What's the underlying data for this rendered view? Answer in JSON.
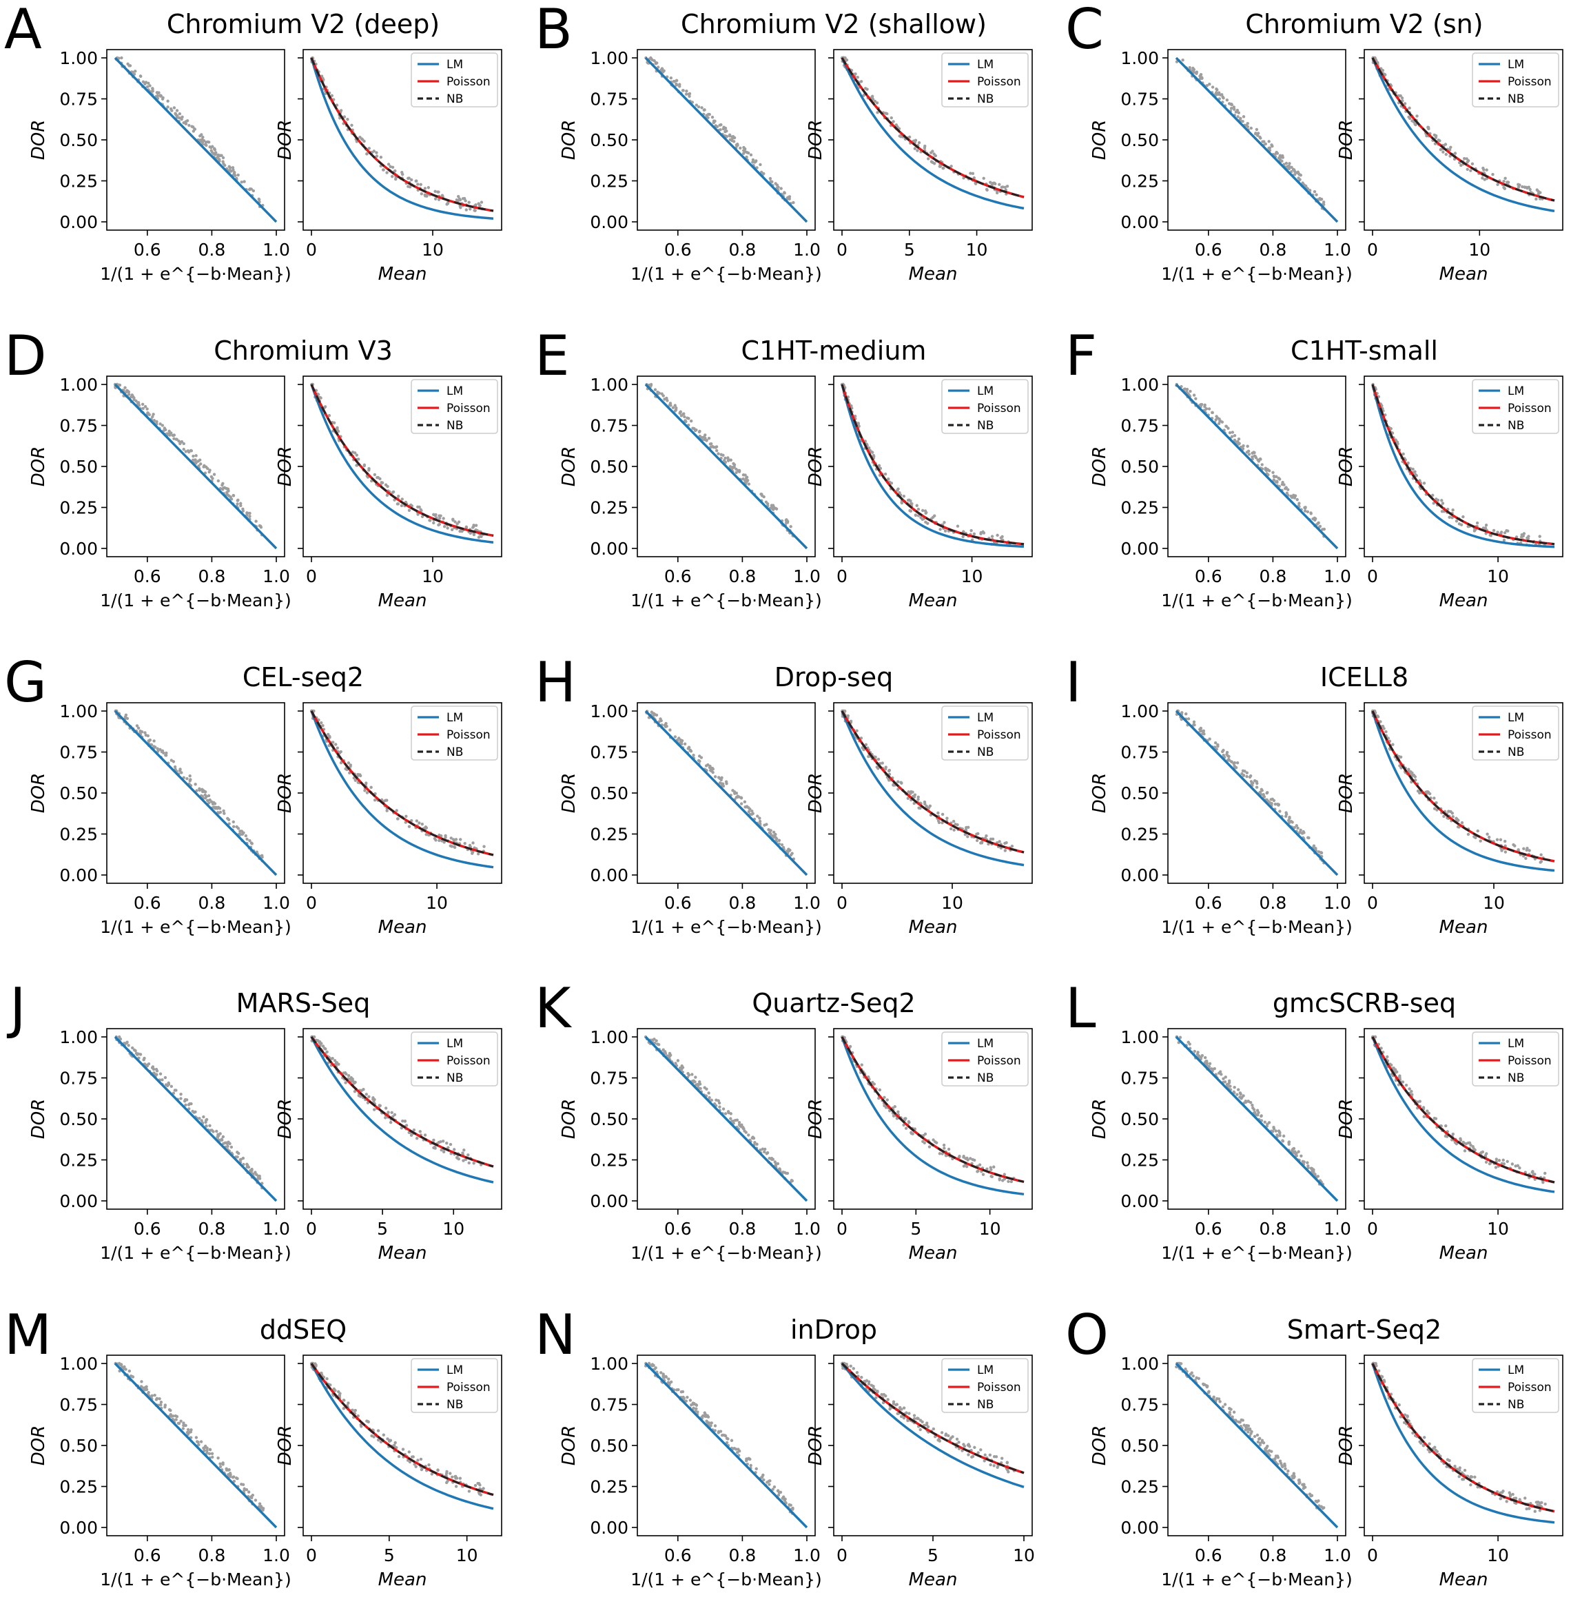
{
  "legend_labels": [
    "LM",
    "Poisson",
    "NB"
  ],
  "colors": {
    "LM": "#1f77b4",
    "Poisson": "#e31a1c",
    "NB": "#222222",
    "points": "#9e9e9e"
  },
  "chart_data": [
    {
      "letter": "A",
      "title": "Chromium V2 (deep)",
      "type": "line",
      "left": {
        "xlabel": "1/(1 + e^{−b·Mean})",
        "ylabel": "DOR",
        "xlim": [
          0.5,
          1.0
        ],
        "ylim": [
          0,
          1
        ],
        "xticks": [
          "0.6",
          "0.8",
          "1.0"
        ],
        "yticks": [
          "0.00",
          "0.25",
          "0.50",
          "0.75",
          "1.00"
        ],
        "series": [
          {
            "name": "LM",
            "values": [
              [
                0.5,
                1.0
              ],
              [
                1.0,
                0.0
              ]
            ]
          }
        ]
      },
      "right": {
        "xlabel": "Mean",
        "ylabel": "DOR",
        "xmax": 15,
        "xticks": [
          "0",
          "10"
        ],
        "k_lm": 0.26,
        "k_pois": 0.18,
        "series": [
          "LM",
          "Poisson",
          "NB"
        ],
        "legend": "top-right"
      }
    },
    {
      "letter": "B",
      "title": "Chromium V2 (shallow)",
      "type": "line",
      "left": {
        "xlabel": "1/(1 + e^{−b·Mean})",
        "ylabel": "DOR",
        "xlim": [
          0.5,
          1.0
        ],
        "ylim": [
          0,
          1
        ],
        "xticks": [
          "0.6",
          "0.8",
          "1.0"
        ],
        "yticks": [
          "0.00",
          "0.25",
          "0.50",
          "0.75",
          "1.00"
        ],
        "series": [
          {
            "name": "LM",
            "values": [
              [
                0.5,
                1.0
              ],
              [
                1.0,
                0.0
              ]
            ]
          }
        ]
      },
      "right": {
        "xlabel": "Mean",
        "ylabel": "DOR",
        "xmax": 13.5,
        "xticks": [
          "0",
          "5",
          "10"
        ],
        "k_lm": 0.185,
        "k_pois": 0.14,
        "series": [
          "LM",
          "Poisson",
          "NB"
        ],
        "legend": "top-right"
      }
    },
    {
      "letter": "C",
      "title": "Chromium V2 (sn)",
      "type": "line",
      "left": {
        "xlabel": "1/(1 + e^{−b·Mean})",
        "ylabel": "DOR",
        "xlim": [
          0.5,
          1.0
        ],
        "ylim": [
          0,
          1
        ],
        "xticks": [
          "0.6",
          "0.8",
          "1.0"
        ],
        "yticks": [
          "0.00",
          "0.25",
          "0.50",
          "0.75",
          "1.00"
        ],
        "series": [
          {
            "name": "LM",
            "values": [
              [
                0.5,
                1.0
              ],
              [
                1.0,
                0.0
              ]
            ]
          }
        ]
      },
      "right": {
        "xlabel": "Mean",
        "ylabel": "DOR",
        "xmax": 17,
        "xticks": [
          "0",
          "10"
        ],
        "k_lm": 0.16,
        "k_pois": 0.12,
        "series": [
          "LM",
          "Poisson",
          "NB"
        ],
        "legend": "top-right"
      }
    },
    {
      "letter": "D",
      "title": "Chromium V3",
      "type": "line",
      "left": {
        "xlabel": "1/(1 + e^{−b·Mean})",
        "ylabel": "DOR",
        "xlim": [
          0.5,
          1.0
        ],
        "ylim": [
          0,
          1
        ],
        "xticks": [
          "0.6",
          "0.8",
          "1.0"
        ],
        "yticks": [
          "0.00",
          "0.25",
          "0.50",
          "0.75",
          "1.00"
        ],
        "series": [
          {
            "name": "LM",
            "values": [
              [
                0.5,
                1.0
              ],
              [
                1.0,
                0.0
              ]
            ]
          }
        ]
      },
      "right": {
        "xlabel": "Mean",
        "ylabel": "DOR",
        "xmax": 15,
        "xticks": [
          "0",
          "10"
        ],
        "k_lm": 0.22,
        "k_pois": 0.17,
        "series": [
          "LM",
          "Poisson",
          "NB"
        ],
        "legend": "top-right"
      }
    },
    {
      "letter": "E",
      "title": "C1HT-medium",
      "type": "line",
      "left": {
        "xlabel": "1/(1 + e^{−b·Mean})",
        "ylabel": "DOR",
        "xlim": [
          0.5,
          1.0
        ],
        "ylim": [
          0,
          1
        ],
        "xticks": [
          "0.6",
          "0.8",
          "1.0"
        ],
        "yticks": [
          "0.00",
          "0.25",
          "0.50",
          "0.75",
          "1.00"
        ],
        "series": [
          {
            "name": "LM",
            "values": [
              [
                0.5,
                1.0
              ],
              [
                1.0,
                0.0
              ]
            ]
          }
        ]
      },
      "right": {
        "xlabel": "Mean",
        "ylabel": "DOR",
        "xmax": 14,
        "xticks": [
          "0",
          "10"
        ],
        "k_lm": 0.32,
        "k_pois": 0.26,
        "series": [
          "LM",
          "Poisson",
          "NB"
        ],
        "legend": "top-right"
      }
    },
    {
      "letter": "F",
      "title": "C1HT-small",
      "type": "line",
      "left": {
        "xlabel": "1/(1 + e^{−b·Mean})",
        "ylabel": "DOR",
        "xlim": [
          0.5,
          1.0
        ],
        "ylim": [
          0,
          1
        ],
        "xticks": [
          "0.6",
          "0.8",
          "1.0"
        ],
        "yticks": [
          "0.00",
          "0.25",
          "0.50",
          "0.75",
          "1.00"
        ],
        "series": [
          {
            "name": "LM",
            "values": [
              [
                0.5,
                1.0
              ],
              [
                1.0,
                0.0
              ]
            ]
          }
        ]
      },
      "right": {
        "xlabel": "Mean",
        "ylabel": "DOR",
        "xmax": 14.5,
        "xticks": [
          "0",
          "10"
        ],
        "k_lm": 0.32,
        "k_pois": 0.25,
        "series": [
          "LM",
          "Poisson",
          "NB"
        ],
        "legend": "top-right"
      }
    },
    {
      "letter": "G",
      "title": "CEL-seq2",
      "type": "line",
      "left": {
        "xlabel": "1/(1 + e^{−b·Mean})",
        "ylabel": "DOR",
        "xlim": [
          0.5,
          1.0
        ],
        "ylim": [
          0,
          1
        ],
        "xticks": [
          "0.6",
          "0.8",
          "1.0"
        ],
        "yticks": [
          "0.00",
          "0.25",
          "0.50",
          "0.75",
          "1.00"
        ],
        "series": [
          {
            "name": "LM",
            "values": [
              [
                0.5,
                1.0
              ],
              [
                1.0,
                0.0
              ]
            ]
          }
        ]
      },
      "right": {
        "xlabel": "Mean",
        "ylabel": "DOR",
        "xmax": 14.5,
        "xticks": [
          "0",
          "10"
        ],
        "k_lm": 0.21,
        "k_pois": 0.145,
        "series": [
          "LM",
          "Poisson",
          "NB"
        ],
        "legend": "top-right"
      }
    },
    {
      "letter": "H",
      "title": "Drop-seq",
      "type": "line",
      "left": {
        "xlabel": "1/(1 + e^{−b·Mean})",
        "ylabel": "DOR",
        "xlim": [
          0.5,
          1.0
        ],
        "ylim": [
          0,
          1
        ],
        "xticks": [
          "0.6",
          "0.8",
          "1.0"
        ],
        "yticks": [
          "0.00",
          "0.25",
          "0.50",
          "0.75",
          "1.00"
        ],
        "series": [
          {
            "name": "LM",
            "values": [
              [
                0.5,
                1.0
              ],
              [
                1.0,
                0.0
              ]
            ]
          }
        ]
      },
      "right": {
        "xlabel": "Mean",
        "ylabel": "DOR",
        "xmax": 16.5,
        "xticks": [
          "0",
          "10"
        ],
        "k_lm": 0.17,
        "k_pois": 0.12,
        "series": [
          "LM",
          "Poisson",
          "NB"
        ],
        "legend": "top-right"
      }
    },
    {
      "letter": "I",
      "title": "ICELL8",
      "type": "line",
      "left": {
        "xlabel": "1/(1 + e^{−b·Mean})",
        "ylabel": "DOR",
        "xlim": [
          0.5,
          1.0
        ],
        "ylim": [
          0,
          1
        ],
        "xticks": [
          "0.6",
          "0.8",
          "1.0"
        ],
        "yticks": [
          "0.00",
          "0.25",
          "0.50",
          "0.75",
          "1.00"
        ],
        "series": [
          {
            "name": "LM",
            "values": [
              [
                0.5,
                1.0
              ],
              [
                1.0,
                0.0
              ]
            ]
          }
        ]
      },
      "right": {
        "xlabel": "Mean",
        "ylabel": "DOR",
        "xmax": 15,
        "xticks": [
          "0",
          "10"
        ],
        "k_lm": 0.24,
        "k_pois": 0.165,
        "series": [
          "LM",
          "Poisson",
          "NB"
        ],
        "legend": "top-right"
      }
    },
    {
      "letter": "J",
      "title": "MARS-Seq",
      "type": "line",
      "left": {
        "xlabel": "1/(1 + e^{−b·Mean})",
        "ylabel": "DOR",
        "xlim": [
          0.5,
          1.0
        ],
        "ylim": [
          0,
          1
        ],
        "xticks": [
          "0.6",
          "0.8",
          "1.0"
        ],
        "yticks": [
          "0.00",
          "0.25",
          "0.50",
          "0.75",
          "1.00"
        ],
        "series": [
          {
            "name": "LM",
            "values": [
              [
                0.5,
                1.0
              ],
              [
                1.0,
                0.0
              ]
            ]
          }
        ]
      },
      "right": {
        "xlabel": "Mean",
        "ylabel": "DOR",
        "xmax": 12.8,
        "xticks": [
          "0",
          "5",
          "10"
        ],
        "k_lm": 0.17,
        "k_pois": 0.122,
        "series": [
          "LM",
          "Poisson",
          "NB"
        ],
        "legend": "top-right"
      }
    },
    {
      "letter": "K",
      "title": "Quartz-Seq2",
      "type": "line",
      "left": {
        "xlabel": "1/(1 + e^{−b·Mean})",
        "ylabel": "DOR",
        "xlim": [
          0.5,
          1.0
        ],
        "ylim": [
          0,
          1
        ],
        "xticks": [
          "0.6",
          "0.8",
          "1.0"
        ],
        "yticks": [
          "0.00",
          "0.25",
          "0.50",
          "0.75",
          "1.00"
        ],
        "series": [
          {
            "name": "LM",
            "values": [
              [
                0.5,
                1.0
              ],
              [
                1.0,
                0.0
              ]
            ]
          }
        ]
      },
      "right": {
        "xlabel": "Mean",
        "ylabel": "DOR",
        "xmax": 12.3,
        "xticks": [
          "0",
          "5",
          "10"
        ],
        "k_lm": 0.26,
        "k_pois": 0.175,
        "series": [
          "LM",
          "Poisson",
          "NB"
        ],
        "legend": "top-right"
      }
    },
    {
      "letter": "L",
      "title": "gmcSCRB-seq",
      "type": "line",
      "left": {
        "xlabel": "1/(1 + e^{−b·Mean})",
        "ylabel": "DOR",
        "xlim": [
          0.5,
          1.0
        ],
        "ylim": [
          0,
          1
        ],
        "xticks": [
          "0.6",
          "0.8",
          "1.0"
        ],
        "yticks": [
          "0.00",
          "0.25",
          "0.50",
          "0.75",
          "1.00"
        ],
        "series": [
          {
            "name": "LM",
            "values": [
              [
                0.5,
                1.0
              ],
              [
                1.0,
                0.0
              ]
            ]
          }
        ]
      },
      "right": {
        "xlabel": "Mean",
        "ylabel": "DOR",
        "xmax": 14.5,
        "xticks": [
          "0",
          "10"
        ],
        "k_lm": 0.2,
        "k_pois": 0.15,
        "series": [
          "LM",
          "Poisson",
          "NB"
        ],
        "legend": "top-right"
      }
    },
    {
      "letter": "M",
      "title": "ddSEQ",
      "type": "line",
      "left": {
        "xlabel": "1/(1 + e^{−b·Mean})",
        "ylabel": "DOR",
        "xlim": [
          0.5,
          1.0
        ],
        "ylim": [
          0,
          1
        ],
        "xticks": [
          "0.6",
          "0.8",
          "1.0"
        ],
        "yticks": [
          "0.00",
          "0.25",
          "0.50",
          "0.75",
          "1.00"
        ],
        "series": [
          {
            "name": "LM",
            "values": [
              [
                0.5,
                1.0
              ],
              [
                1.0,
                0.0
              ]
            ]
          }
        ]
      },
      "right": {
        "xlabel": "Mean",
        "ylabel": "DOR",
        "xmax": 11.7,
        "xticks": [
          "0",
          "5",
          "10"
        ],
        "k_lm": 0.185,
        "k_pois": 0.138,
        "series": [
          "LM",
          "Poisson",
          "NB"
        ],
        "legend": "top-right"
      }
    },
    {
      "letter": "N",
      "title": "inDrop",
      "type": "line",
      "left": {
        "xlabel": "1/(1 + e^{−b·Mean})",
        "ylabel": "DOR",
        "xlim": [
          0.5,
          1.0
        ],
        "ylim": [
          0,
          1
        ],
        "xticks": [
          "0.6",
          "0.8",
          "1.0"
        ],
        "yticks": [
          "0.00",
          "0.25",
          "0.50",
          "0.75",
          "1.00"
        ],
        "series": [
          {
            "name": "LM",
            "values": [
              [
                0.5,
                1.0
              ],
              [
                1.0,
                0.0
              ]
            ]
          }
        ]
      },
      "right": {
        "xlabel": "Mean",
        "ylabel": "DOR",
        "xmax": 10,
        "xticks": [
          "0",
          "5",
          "10"
        ],
        "k_lm": 0.14,
        "k_pois": 0.11,
        "series": [
          "LM",
          "Poisson",
          "NB"
        ],
        "legend": "top-right"
      }
    },
    {
      "letter": "O",
      "title": "Smart-Seq2",
      "type": "line",
      "left": {
        "xlabel": "1/(1 + e^{−b·Mean})",
        "ylabel": "DOR",
        "xlim": [
          0.5,
          1.0
        ],
        "ylim": [
          0,
          1
        ],
        "xticks": [
          "0.6",
          "0.8",
          "1.0"
        ],
        "yticks": [
          "0.00",
          "0.25",
          "0.50",
          "0.75",
          "1.00"
        ],
        "series": [
          {
            "name": "LM",
            "values": [
              [
                0.5,
                1.0
              ],
              [
                1.0,
                0.0
              ]
            ]
          }
        ]
      },
      "right": {
        "xlabel": "Mean",
        "ylabel": "DOR",
        "xmax": 14.5,
        "xticks": [
          "0",
          "10"
        ],
        "k_lm": 0.24,
        "k_pois": 0.16,
        "series": [
          "LM",
          "Poisson",
          "NB"
        ],
        "legend": "top-right"
      }
    }
  ]
}
